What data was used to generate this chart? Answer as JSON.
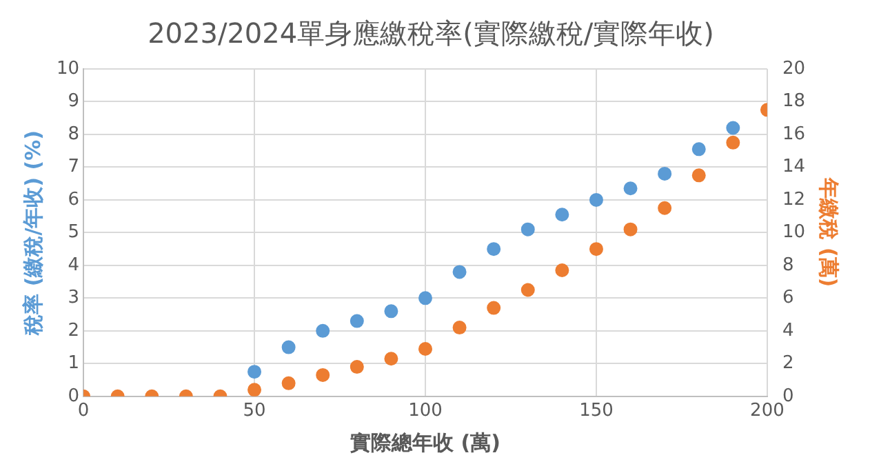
{
  "chart_data": {
    "type": "scatter",
    "title": "2023/2024單身應繳稅率(實際繳稅/實際年收)",
    "xlabel": "實際總年收 (萬)",
    "ylabel": "稅率 (繳稅/年收) (%)",
    "y2label": "年繳稅 (萬)",
    "x": [
      0,
      10,
      20,
      30,
      40,
      50,
      60,
      70,
      80,
      90,
      100,
      110,
      120,
      130,
      140,
      150,
      160,
      170,
      180,
      190,
      200
    ],
    "series": [
      {
        "color": "#5b9bd5",
        "values": [
          null,
          null,
          null,
          null,
          null,
          0.75,
          1.5,
          2.0,
          2.3,
          2.6,
          3.0,
          3.8,
          4.5,
          5.1,
          5.55,
          6.0,
          6.35,
          6.8,
          7.55,
          8.2,
          null
        ]
      },
      {
        "color": "#ed7d31",
        "axis": "y2",
        "values": [
          0,
          0,
          0,
          0,
          0,
          0.4,
          0.8,
          1.3,
          1.8,
          2.3,
          2.9,
          4.2,
          5.4,
          6.5,
          7.7,
          9.0,
          10.2,
          11.5,
          13.5,
          15.5,
          17.5
        ]
      }
    ],
    "xlim": [
      0,
      200
    ],
    "xticks": [
      0,
      50,
      100,
      150,
      200
    ],
    "ylim": [
      0,
      10
    ],
    "yticks": [
      0,
      1,
      2,
      3,
      4,
      5,
      6,
      7,
      8,
      9,
      10
    ],
    "y2lim": [
      0,
      20
    ],
    "y2ticks": [
      0,
      2,
      4,
      6,
      8,
      10,
      12,
      14,
      16,
      18,
      20
    ],
    "grid": true,
    "marker": "circle",
    "legend": false
  }
}
